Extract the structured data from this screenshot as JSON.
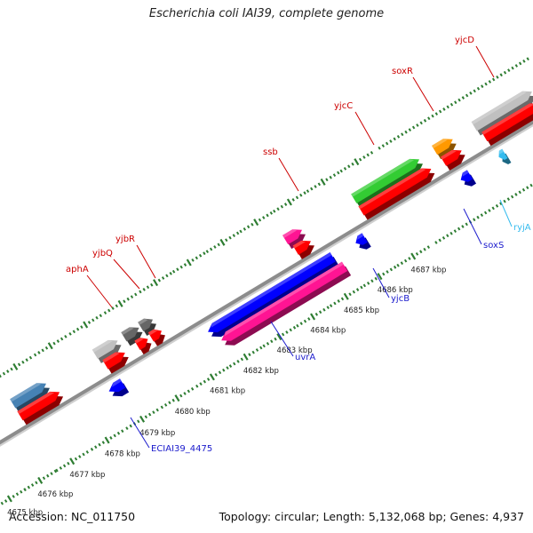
{
  "title": "Escherichia coli IAI39, complete genome",
  "footer": {
    "accession": "Accession: NC_011750",
    "stats": "Topology: circular; Length: 5,132,068 bp; Genes: 4,937"
  },
  "colors": {
    "backbone": "#8c8c8c",
    "tick": "#2e7d32",
    "forward_label": "#cc0000",
    "reverse_label": "#1a1acc",
    "rna_label": "#33bbee"
  },
  "ticks": [
    {
      "label": "4675 kbp",
      "start": 20,
      "major": 44,
      "dots": 9
    },
    {
      "label": "4676 kbp",
      "start": 60,
      "major": 90,
      "dots": 9
    },
    {
      "label": "4677 kbp",
      "start": 102,
      "major": 136,
      "dots": 9
    },
    {
      "label": "4678 kbp",
      "start": 148,
      "major": 182,
      "dots": 9
    },
    {
      "label": "4679 kbp",
      "start": 194,
      "major": 228,
      "dots": 9
    },
    {
      "label": "4680 kbp",
      "start": 240,
      "major": 274,
      "dots": 9
    },
    {
      "label": "4681 kbp",
      "start": 286,
      "major": 318,
      "dots": 9
    },
    {
      "label": "4682 kbp",
      "start": 330,
      "major": 362,
      "dots": 9
    },
    {
      "label": "4683 kbp",
      "start": 374,
      "major": 406,
      "dots": 9
    },
    {
      "label": "4684 kbp",
      "start": 418,
      "major": 450,
      "dots": 9
    },
    {
      "label": "4685 kbp",
      "start": 462,
      "major": 494,
      "dots": 9
    },
    {
      "label": "4686 kbp",
      "start": 506,
      "major": 538,
      "dots": 9
    },
    {
      "label": "4687 kbp",
      "start": 550,
      "major": 582,
      "dots": 9
    }
  ],
  "genes": [
    {
      "name": "",
      "strand": "fwd",
      "row": 2,
      "from": 6,
      "to": 22,
      "color": "#6b8e23",
      "label_visible": false
    },
    {
      "name": "",
      "strand": "fwd",
      "row": 1,
      "from": 6,
      "to": 22,
      "color": "#ff0000",
      "label_visible": false
    },
    {
      "name": "",
      "strand": "fwd",
      "row": 2,
      "from": 58,
      "to": 102,
      "color": "#4682b4",
      "label_visible": false
    },
    {
      "name": "",
      "strand": "fwd",
      "row": 1,
      "from": 58,
      "to": 110,
      "color": "#ff0000",
      "label_visible": false
    },
    {
      "name": "aphA",
      "strand": "fwd",
      "row": 2,
      "from": 166,
      "to": 196,
      "color": "#c0c0c0",
      "label_visible": true
    },
    {
      "name": "",
      "strand": "fwd",
      "row": 1,
      "from": 170,
      "to": 196,
      "color": "#ff0000",
      "label_visible": false
    },
    {
      "name": "yjbQ",
      "strand": "fwd",
      "row": 2,
      "from": 204,
      "to": 224,
      "color": "#666666",
      "label_visible": true
    },
    {
      "name": "",
      "strand": "fwd",
      "row": 1,
      "from": 212,
      "to": 226,
      "color": "#ff0000",
      "label_visible": false
    },
    {
      "name": "yjbR",
      "strand": "fwd",
      "row": 2,
      "from": 226,
      "to": 242,
      "color": "#666666",
      "label_visible": true
    },
    {
      "name": "",
      "strand": "fwd",
      "row": 1,
      "from": 230,
      "to": 244,
      "color": "#ff0000",
      "label_visible": false
    },
    {
      "name": "ssb",
      "strand": "fwd",
      "row": 2,
      "from": 416,
      "to": 438,
      "color": "#ff1493",
      "label_visible": true
    },
    {
      "name": "",
      "strand": "fwd",
      "row": 1,
      "from": 420,
      "to": 440,
      "color": "#ff0000",
      "label_visible": false
    },
    {
      "name": "yjcC",
      "strand": "fwd",
      "row": 2,
      "from": 506,
      "to": 592,
      "color": "#33cc33",
      "label_visible": true
    },
    {
      "name": "",
      "strand": "fwd",
      "row": 1,
      "from": 506,
      "to": 598,
      "color": "#ff0000",
      "label_visible": false
    },
    {
      "name": "soxR",
      "strand": "fwd",
      "row": 2,
      "from": 612,
      "to": 636,
      "color": "#ff9900",
      "label_visible": true
    },
    {
      "name": "",
      "strand": "fwd",
      "row": 1,
      "from": 614,
      "to": 638,
      "color": "#ff0000",
      "label_visible": false
    },
    {
      "name": "yjcD",
      "strand": "fwd",
      "row": 2,
      "from": 664,
      "to": 740,
      "color": "#c0c0c0",
      "label_visible": true
    },
    {
      "name": "",
      "strand": "fwd",
      "row": 1,
      "from": 668,
      "to": 740,
      "color": "#ff0000",
      "label_visible": false
    },
    {
      "name": "ECIAI39_4475",
      "strand": "rev",
      "row": 1,
      "from": 158,
      "to": 176,
      "color": "#0000ff",
      "label_visible": true
    },
    {
      "name": "uvrA",
      "strand": "rev",
      "row": 1,
      "from": 288,
      "to": 452,
      "color": "#0000ff",
      "label_visible": true
    },
    {
      "name": "",
      "strand": "rev",
      "row": 2,
      "from": 296,
      "to": 458,
      "color": "#ff1493",
      "label_visible": false
    },
    {
      "name": "yjcB",
      "strand": "rev",
      "row": 1,
      "from": 482,
      "to": 494,
      "color": "#0000ff",
      "label_visible": true
    },
    {
      "name": "soxS",
      "strand": "rev",
      "row": 1,
      "from": 620,
      "to": 632,
      "color": "#0000ff",
      "label_visible": true
    },
    {
      "name": "ryjA",
      "strand": "rev",
      "row": 1,
      "from": 670,
      "to": 678,
      "color": "#33bbee",
      "label_visible": true
    }
  ],
  "labels": [
    {
      "text": "aphA",
      "tx": 74,
      "ty": 306,
      "ax": 126,
      "ay": 346,
      "color_key": "forward_label"
    },
    {
      "text": "yjbQ",
      "tx": 104,
      "ty": 288,
      "ax": 157,
      "ay": 325,
      "color_key": "forward_label"
    },
    {
      "text": "yjbR",
      "tx": 130,
      "ty": 272,
      "ax": 175,
      "ay": 313,
      "color_key": "forward_label"
    },
    {
      "text": "ssb",
      "tx": 296,
      "ty": 174,
      "ax": 336,
      "ay": 215,
      "color_key": "forward_label"
    },
    {
      "text": "yjcC",
      "tx": 376,
      "ty": 122,
      "ax": 421,
      "ay": 163,
      "color_key": "forward_label"
    },
    {
      "text": "soxR",
      "tx": 441,
      "ty": 83,
      "ax": 488,
      "ay": 125,
      "color_key": "forward_label"
    },
    {
      "text": "yjcD",
      "tx": 512,
      "ty": 48,
      "ax": 556,
      "ay": 87,
      "color_key": "forward_label"
    },
    {
      "text": "ECIAI39_4475",
      "tx": 170,
      "ty": 508,
      "ax": 147,
      "ay": 470,
      "color_key": "reverse_label"
    },
    {
      "text": "uvrA",
      "tx": 332,
      "ty": 405,
      "ax": 305,
      "ay": 362,
      "color_key": "reverse_label"
    },
    {
      "text": "yjcB",
      "tx": 440,
      "ty": 339,
      "ax": 420,
      "ay": 302,
      "color_key": "reverse_label"
    },
    {
      "text": "soxS",
      "tx": 544,
      "ty": 279,
      "ax": 522,
      "ay": 235,
      "color_key": "reverse_label"
    },
    {
      "text": "ryjA",
      "tx": 578,
      "ty": 259,
      "ax": 563,
      "ay": 225,
      "color_key": "rna_label"
    }
  ]
}
